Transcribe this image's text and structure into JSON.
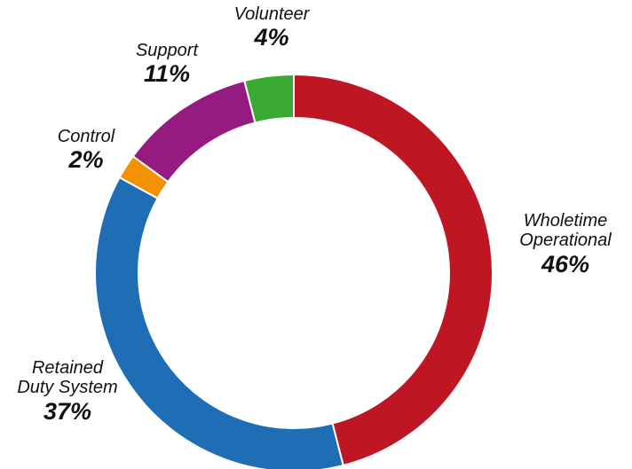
{
  "chart_data": {
    "type": "pie",
    "donut": true,
    "legend": "none",
    "slices": [
      {
        "name_lines": [
          "Wholetime",
          "Operational"
        ],
        "value": 46,
        "label": "46%",
        "color": "#be1622"
      },
      {
        "name_lines": [
          "Retained",
          "Duty System"
        ],
        "value": 37,
        "label": "37%",
        "color": "#1f6eb5"
      },
      {
        "name_lines": [
          "Control"
        ],
        "value": 2,
        "label": "2%",
        "color": "#f39200"
      },
      {
        "name_lines": [
          "Support"
        ],
        "value": 11,
        "label": "11%",
        "color": "#951b81"
      },
      {
        "name_lines": [
          "Volunteer"
        ],
        "value": 4,
        "label": "4%",
        "color": "#3aaa35"
      }
    ]
  }
}
